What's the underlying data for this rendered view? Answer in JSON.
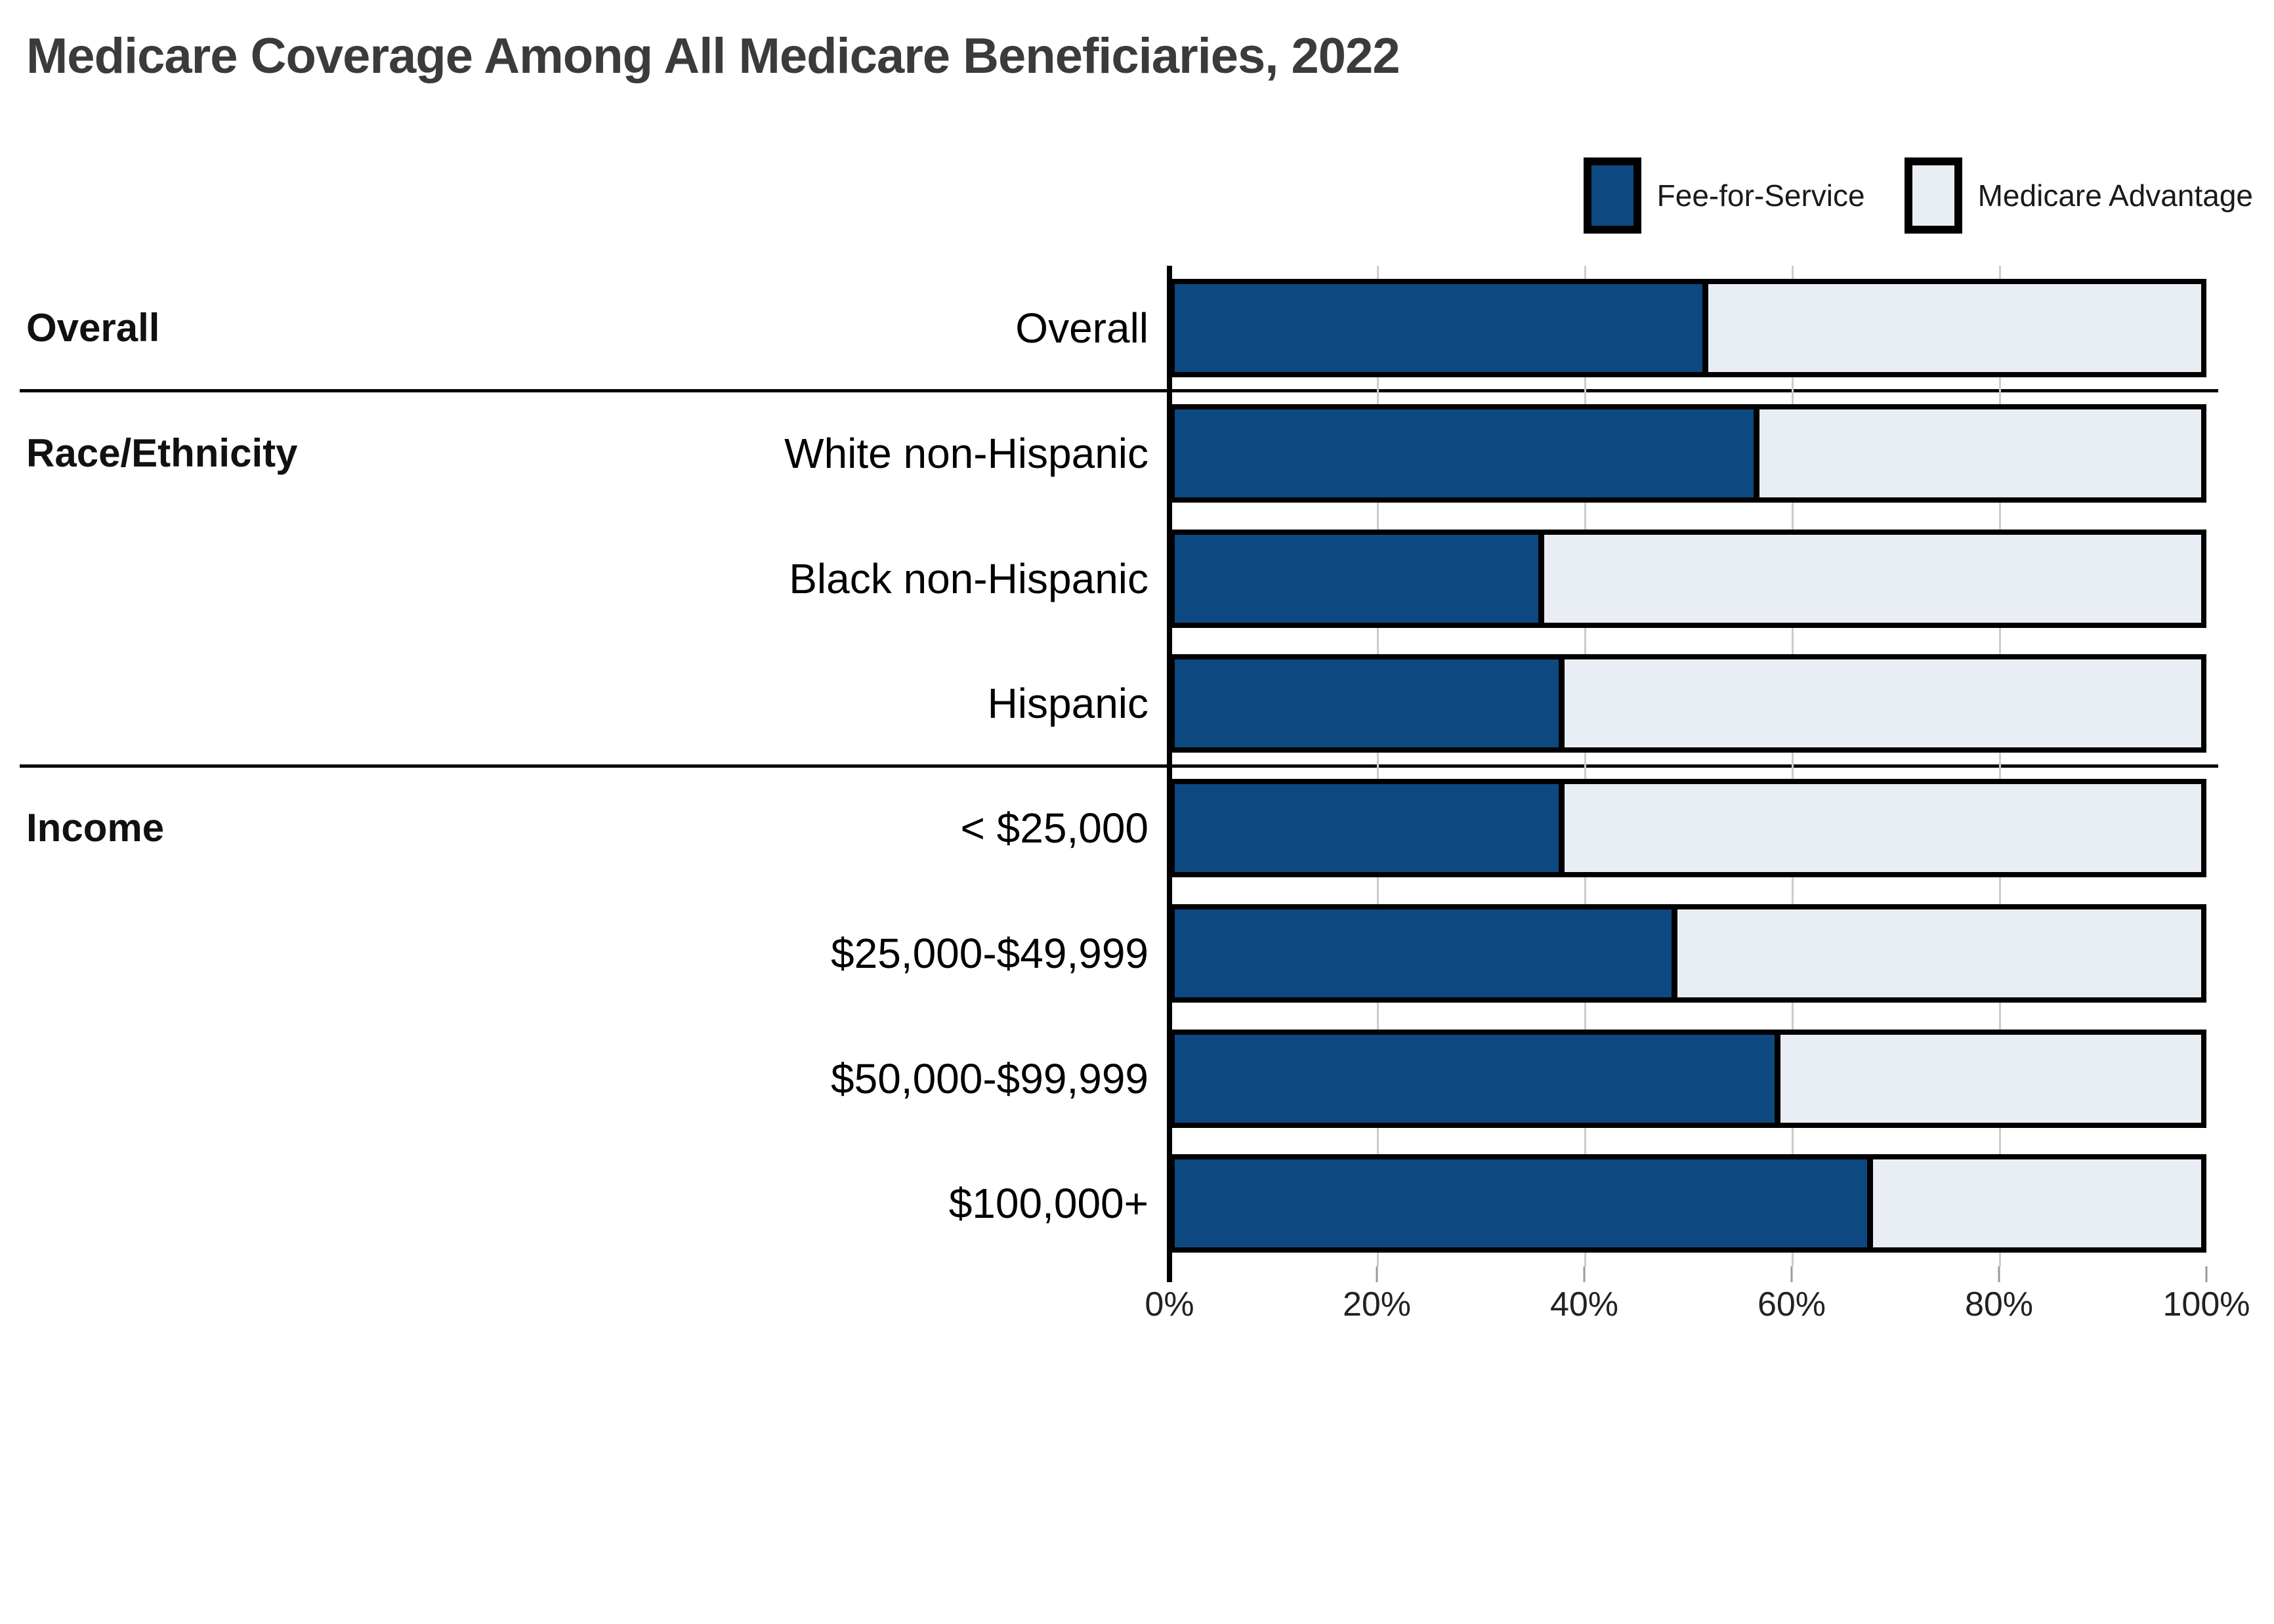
{
  "title": "Medicare Coverage Among All Medicare Beneficiaries, 2022",
  "legend": {
    "items": [
      {
        "label": "Fee-for-Service",
        "color": "#0d4980"
      },
      {
        "label": "Medicare Advantage",
        "color": "#e9edf4"
      }
    ]
  },
  "sections": [
    {
      "label": "Overall"
    },
    {
      "label": "Race/Ethnicity"
    },
    {
      "label": "Income"
    }
  ],
  "chart_data": {
    "type": "bar",
    "orientation": "horizontal",
    "stacked": true,
    "title": "Medicare Coverage Among All Medicare Beneficiaries, 2022",
    "categories": [
      "Overall",
      "White non-Hispanic",
      "Black non-Hispanic",
      "Hispanic",
      "< $25,000",
      "$25,000-$49,999",
      "$50,000-$99,999",
      "$100,000+"
    ],
    "category_groups": [
      {
        "label": "Overall",
        "category_indexes": [
          0
        ]
      },
      {
        "label": "Race/Ethnicity",
        "category_indexes": [
          1,
          2,
          3
        ]
      },
      {
        "label": "Income",
        "category_indexes": [
          4,
          5,
          6,
          7
        ]
      }
    ],
    "series": [
      {
        "name": "Fee-for-Service",
        "color": "#0d4980",
        "values": [
          52,
          57,
          36,
          38,
          38,
          49,
          59,
          68
        ]
      },
      {
        "name": "Medicare Advantage",
        "color": "#e9edf4",
        "values": [
          48,
          43,
          64,
          62,
          62,
          51,
          41,
          32
        ]
      }
    ],
    "unit": "%",
    "xlabel": "",
    "ylabel": "",
    "x_axis": {
      "min": 0,
      "max": 100,
      "tick_labels": [
        "0%",
        "20%",
        "40%",
        "60%",
        "80%",
        "100%"
      ],
      "tick_positions": [
        0,
        20,
        40,
        60,
        80,
        100
      ],
      "grid": true
    },
    "legend_position": "top-right",
    "bar_border_color": "#000000",
    "gridline_color": "#cccccc"
  }
}
